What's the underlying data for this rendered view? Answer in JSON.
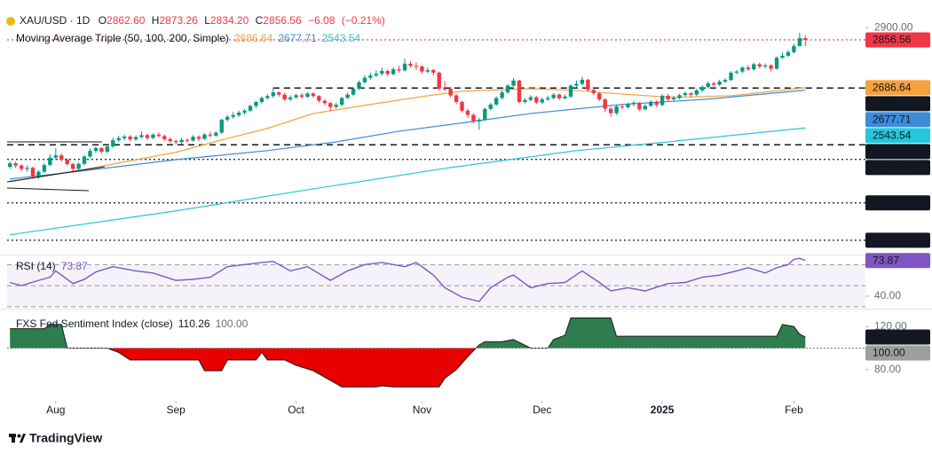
{
  "header": {
    "title": "XAU/USD · 1D",
    "ohlc": [
      {
        "key": "O",
        "label": "2862.60"
      },
      {
        "key": "H",
        "label": "2873.26"
      },
      {
        "key": "L",
        "label": "2834.20"
      },
      {
        "key": "C",
        "label": "2856.56"
      }
    ],
    "change": "−6.08",
    "change_pct": "(−0.21%)"
  },
  "chart_data": [
    {
      "type": "candlestick",
      "indicator": "Moving Average Triple (50, 100, 200, Simple)",
      "up_color": "#089981",
      "down_color": "#f23645",
      "xlim": [
        -0.5,
        149.5
      ],
      "ylim": [
        2100,
        2973
      ],
      "yticks": [
        {
          "value": 2900,
          "label": "2900.00"
        }
      ],
      "open": [
        2405,
        2418,
        2410,
        2398,
        2402,
        2370,
        2388,
        2412,
        2438,
        2446,
        2431,
        2415,
        2398,
        2416,
        2442,
        2462,
        2472,
        2459,
        2478,
        2500,
        2507,
        2513,
        2503,
        2511,
        2518,
        2508,
        2520,
        2515,
        2504,
        2497,
        2493,
        2501,
        2499,
        2512,
        2505,
        2520,
        2516,
        2527,
        2573,
        2583,
        2589,
        2598,
        2605,
        2622,
        2636,
        2650,
        2657,
        2670,
        2662,
        2645,
        2652,
        2660,
        2654,
        2666,
        2657,
        2640,
        2632,
        2618,
        2626,
        2650,
        2662,
        2683,
        2706,
        2722,
        2730,
        2736,
        2746,
        2735,
        2752,
        2748,
        2772,
        2765,
        2762,
        2744,
        2749,
        2740,
        2684,
        2683,
        2659,
        2636,
        2605,
        2590,
        2567,
        2573,
        2611,
        2627,
        2650,
        2670,
        2694,
        2712,
        2636,
        2643,
        2653,
        2634,
        2645,
        2650,
        2662,
        2649,
        2655,
        2694,
        2700,
        2715,
        2679,
        2667,
        2645,
        2612,
        2596,
        2620,
        2617,
        2628,
        2633,
        2610,
        2622,
        2637,
        2625,
        2658,
        2645,
        2650,
        2660,
        2667,
        2662,
        2677,
        2689,
        2702,
        2697,
        2708,
        2714,
        2740,
        2744,
        2758,
        2752,
        2770,
        2762,
        2766,
        2754,
        2793,
        2800,
        2813,
        2835,
        2862.6
      ],
      "high": [
        2425,
        2424,
        2415,
        2410,
        2406,
        2394,
        2418,
        2450,
        2472,
        2453,
        2436,
        2420,
        2422,
        2448,
        2471,
        2478,
        2476,
        2485,
        2509,
        2516,
        2520,
        2518,
        2517,
        2531,
        2524,
        2525,
        2528,
        2520,
        2510,
        2504,
        2508,
        2507,
        2518,
        2517,
        2526,
        2530,
        2532,
        2576,
        2590,
        2600,
        2605,
        2612,
        2626,
        2640,
        2656,
        2664,
        2685,
        2673,
        2668,
        2660,
        2665,
        2668,
        2671,
        2670,
        2660,
        2646,
        2637,
        2633,
        2655,
        2669,
        2688,
        2712,
        2730,
        2740,
        2748,
        2758,
        2752,
        2760,
        2764,
        2790,
        2780,
        2776,
        2768,
        2758,
        2754,
        2744,
        2710,
        2690,
        2665,
        2640,
        2612,
        2596,
        2580,
        2616,
        2632,
        2656,
        2676,
        2700,
        2721,
        2715,
        2650,
        2660,
        2657,
        2652,
        2658,
        2667,
        2666,
        2662,
        2698,
        2712,
        2726,
        2718,
        2686,
        2672,
        2650,
        2618,
        2625,
        2628,
        2633,
        2640,
        2636,
        2628,
        2642,
        2642,
        2664,
        2665,
        2658,
        2665,
        2673,
        2670,
        2683,
        2695,
        2709,
        2708,
        2715,
        2720,
        2745,
        2750,
        2763,
        2767,
        2776,
        2776,
        2773,
        2770,
        2798,
        2812,
        2820,
        2843,
        2882,
        2873.26
      ],
      "low": [
        2398,
        2402,
        2390,
        2388,
        2364,
        2363,
        2383,
        2408,
        2430,
        2424,
        2410,
        2384,
        2392,
        2410,
        2436,
        2455,
        2451,
        2454,
        2472,
        2493,
        2500,
        2496,
        2497,
        2506,
        2500,
        2504,
        2509,
        2497,
        2490,
        2484,
        2487,
        2492,
        2495,
        2496,
        2500,
        2510,
        2512,
        2522,
        2566,
        2576,
        2583,
        2590,
        2600,
        2614,
        2630,
        2644,
        2650,
        2655,
        2640,
        2638,
        2647,
        2648,
        2650,
        2651,
        2633,
        2625,
        2604,
        2612,
        2620,
        2646,
        2656,
        2678,
        2700,
        2715,
        2724,
        2729,
        2727,
        2730,
        2740,
        2744,
        2758,
        2750,
        2736,
        2738,
        2730,
        2676,
        2675,
        2652,
        2628,
        2598,
        2580,
        2560,
        2537,
        2568,
        2605,
        2622,
        2645,
        2665,
        2690,
        2630,
        2630,
        2638,
        2628,
        2628,
        2640,
        2645,
        2643,
        2644,
        2650,
        2688,
        2695,
        2672,
        2660,
        2638,
        2600,
        2583,
        2590,
        2610,
        2612,
        2620,
        2603,
        2605,
        2618,
        2618,
        2620,
        2640,
        2640,
        2645,
        2656,
        2654,
        2657,
        2670,
        2684,
        2690,
        2692,
        2703,
        2710,
        2734,
        2738,
        2746,
        2747,
        2755,
        2754,
        2744,
        2750,
        2788,
        2796,
        2808,
        2832,
        2834.2
      ],
      "close": [
        2418,
        2410,
        2398,
        2402,
        2370,
        2388,
        2412,
        2438,
        2446,
        2431,
        2415,
        2398,
        2416,
        2442,
        2462,
        2472,
        2459,
        2478,
        2500,
        2507,
        2513,
        2503,
        2511,
        2518,
        2508,
        2520,
        2515,
        2504,
        2497,
        2493,
        2501,
        2499,
        2512,
        2505,
        2520,
        2516,
        2527,
        2573,
        2583,
        2589,
        2598,
        2605,
        2622,
        2636,
        2650,
        2657,
        2670,
        2662,
        2645,
        2652,
        2660,
        2654,
        2666,
        2657,
        2640,
        2632,
        2618,
        2626,
        2650,
        2662,
        2683,
        2706,
        2722,
        2730,
        2736,
        2746,
        2735,
        2752,
        2748,
        2772,
        2765,
        2762,
        2744,
        2749,
        2740,
        2684,
        2683,
        2659,
        2636,
        2605,
        2590,
        2567,
        2573,
        2611,
        2627,
        2650,
        2670,
        2694,
        2712,
        2636,
        2643,
        2653,
        2634,
        2645,
        2650,
        2662,
        2649,
        2655,
        2694,
        2700,
        2715,
        2679,
        2667,
        2645,
        2612,
        2596,
        2620,
        2617,
        2628,
        2633,
        2610,
        2622,
        2637,
        2625,
        2658,
        2645,
        2650,
        2660,
        2667,
        2662,
        2677,
        2689,
        2702,
        2697,
        2708,
        2714,
        2740,
        2744,
        2758,
        2752,
        2770,
        2762,
        2766,
        2754,
        2793,
        2800,
        2813,
        2835,
        2863,
        2856.56
      ],
      "series": [
        {
          "color": "#f5a13d",
          "x": [
            0,
            14,
            29,
            37,
            45,
            53,
            63,
            73,
            79,
            91,
            99,
            107,
            116,
            126,
            139
          ],
          "values": [
            2352,
            2400,
            2457,
            2501,
            2542,
            2595,
            2627,
            2658,
            2674,
            2683,
            2677,
            2664,
            2652,
            2658,
            2686.64
          ]
        },
        {
          "color": "#3d8bd9",
          "x": [
            0,
            14,
            29,
            45,
            57,
            68,
            80,
            91,
            107,
            122,
            139
          ],
          "values": [
            2362,
            2394,
            2431,
            2463,
            2494,
            2532,
            2564,
            2595,
            2627,
            2646,
            2677.71
          ]
        },
        {
          "color": "#26c6da",
          "x": [
            0,
            29,
            53,
            76,
            99,
            115,
            139
          ],
          "values": [
            2164,
            2249,
            2327,
            2400,
            2463,
            2494,
            2543.54
          ]
        }
      ],
      "price_labels": [
        {
          "value": 2856.56,
          "color": "#f23645",
          "line": "dotted"
        },
        {
          "value": 2686.64,
          "color": "#f5a13d"
        },
        {
          "value": 2685.51,
          "color": "#131722",
          "line": "dashed",
          "x_from": 46
        },
        {
          "value": 2677.71,
          "color": "#3d8bd9"
        },
        {
          "value": 2543.54,
          "color": "#26c6da"
        },
        {
          "value": 2483.75,
          "color": "#131722",
          "line": "dashed"
        },
        {
          "value": 2431.61,
          "color": "#131722",
          "line": "dotted"
        },
        {
          "value": 2277.31,
          "color": "#131722",
          "line": "dotted"
        },
        {
          "value": 2144.48,
          "color": "#131722",
          "line": "dotted"
        }
      ]
    },
    {
      "type": "line",
      "title": "RSI (14)",
      "color": "#7e57c2",
      "xlim": [
        -0.5,
        149.5
      ],
      "ylim": [
        29,
        77
      ],
      "yticks": [
        {
          "value": 40,
          "label": "40.00"
        }
      ],
      "bands": [
        70,
        50,
        30
      ],
      "x": [
        0,
        2,
        5,
        7,
        8,
        11,
        13,
        15,
        18,
        22,
        25,
        29,
        32,
        35,
        38,
        41,
        44,
        46,
        49,
        52,
        56,
        59,
        62,
        65,
        69,
        71,
        74,
        76,
        79,
        82,
        84,
        87,
        88,
        91,
        94,
        97,
        100,
        103,
        105,
        108,
        111,
        115,
        118,
        121,
        124,
        127,
        129,
        132,
        134,
        136,
        137,
        138,
        139
      ],
      "values": [
        53,
        50,
        55,
        58,
        64,
        52,
        56,
        63,
        68,
        64,
        62,
        55,
        56,
        58,
        68,
        70,
        72,
        73,
        64,
        68,
        55,
        64,
        70,
        72,
        68,
        72,
        60,
        48,
        39,
        35,
        48,
        58,
        60,
        48,
        52,
        53,
        64,
        53,
        45,
        48,
        45,
        52,
        53,
        58,
        60,
        64,
        67,
        62,
        67,
        70,
        75,
        76,
        73.87
      ]
    },
    {
      "type": "area",
      "title": "FXS Fed Sentiment Index (close)",
      "colors": {
        "above": "#2e7d4f",
        "below": "#e60000"
      },
      "xlim": [
        -0.5,
        149.5
      ],
      "ylim": [
        51,
        135
      ],
      "yticks": [
        {
          "value": 120,
          "label": "120.00"
        },
        {
          "value": 80,
          "label": "80.00"
        }
      ],
      "baseline": {
        "value": 100,
        "label": "100.00"
      },
      "x": [
        0,
        6,
        7,
        9,
        10,
        17,
        19,
        21,
        33,
        34,
        37,
        38,
        43,
        44,
        45,
        48,
        50,
        53,
        56,
        58,
        64,
        65,
        67,
        75,
        76,
        78,
        80,
        82,
        83,
        86,
        88,
        91,
        94,
        95,
        97,
        98,
        105,
        106,
        134,
        135,
        137,
        138,
        139
      ],
      "values": [
        118,
        118,
        122,
        122,
        100,
        100,
        96,
        89,
        89,
        79,
        79,
        89,
        89,
        96,
        89,
        89,
        84,
        79,
        70,
        64,
        64,
        65,
        64,
        64,
        72,
        80,
        92,
        103,
        106,
        106,
        108,
        100,
        100,
        108,
        112,
        128,
        128,
        111,
        111,
        122,
        120,
        113,
        110.26
      ],
      "xticks": [
        {
          "value": 8,
          "label": "Aug"
        },
        {
          "value": 29,
          "label": "Sep"
        },
        {
          "value": 50,
          "label": "Oct"
        },
        {
          "value": 72,
          "label": "Nov"
        },
        {
          "value": 93,
          "label": "Dec"
        },
        {
          "value": 114,
          "label": "2025"
        },
        {
          "value": 137,
          "label": "Feb"
        }
      ]
    }
  ],
  "brand": "TradingView"
}
